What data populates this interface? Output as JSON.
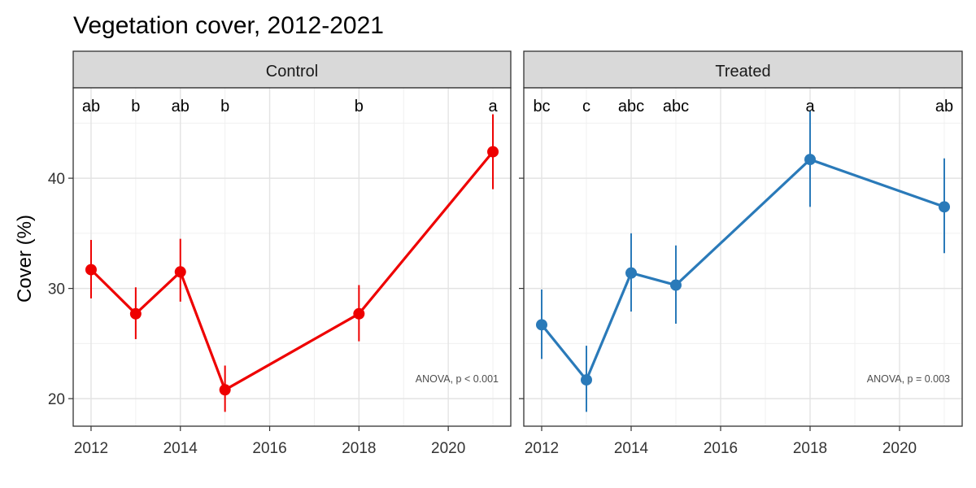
{
  "figure": {
    "title": "Vegetation cover, 2012-2021",
    "ylabel": "Cover (%)"
  },
  "chart_data": {
    "type": "line",
    "title": "Vegetation cover, 2012-2021",
    "xlabel": "",
    "ylabel": "Cover (%)",
    "xlim": [
      2011.6,
      2021.4
    ],
    "ylim": [
      17.5,
      48.2
    ],
    "x_ticks": [
      2012,
      2014,
      2016,
      2018,
      2020
    ],
    "y_ticks": [
      20,
      30,
      40
    ],
    "grid": true,
    "facets": [
      {
        "label": "Control",
        "color": "#ee0000",
        "annotation": "ANOVA, p < 0.001",
        "points": [
          {
            "x": 2012,
            "y": 31.7,
            "lo": 29.1,
            "hi": 34.4,
            "group": "ab"
          },
          {
            "x": 2013,
            "y": 27.7,
            "lo": 25.4,
            "hi": 30.1,
            "group": "b"
          },
          {
            "x": 2014,
            "y": 31.5,
            "lo": 28.8,
            "hi": 34.5,
            "group": "ab"
          },
          {
            "x": 2015,
            "y": 20.8,
            "lo": 18.8,
            "hi": 23.0,
            "group": "b"
          },
          {
            "x": 2018,
            "y": 27.7,
            "lo": 25.2,
            "hi": 30.3,
            "group": "b"
          },
          {
            "x": 2021,
            "y": 42.4,
            "lo": 39.0,
            "hi": 45.8,
            "group": "a"
          }
        ]
      },
      {
        "label": "Treated",
        "color": "#2a7ab9",
        "annotation": "ANOVA, p = 0.003",
        "points": [
          {
            "x": 2012,
            "y": 26.7,
            "lo": 23.6,
            "hi": 29.9,
            "group": "bc"
          },
          {
            "x": 2013,
            "y": 21.7,
            "lo": 18.8,
            "hi": 24.8,
            "group": "c"
          },
          {
            "x": 2014,
            "y": 31.4,
            "lo": 27.9,
            "hi": 35.0,
            "group": "abc"
          },
          {
            "x": 2015,
            "y": 30.3,
            "lo": 26.8,
            "hi": 33.9,
            "group": "abc"
          },
          {
            "x": 2018,
            "y": 41.7,
            "lo": 37.4,
            "hi": 46.1,
            "group": "a"
          },
          {
            "x": 2021,
            "y": 37.4,
            "lo": 33.2,
            "hi": 41.8,
            "group": "ab"
          }
        ]
      }
    ]
  }
}
